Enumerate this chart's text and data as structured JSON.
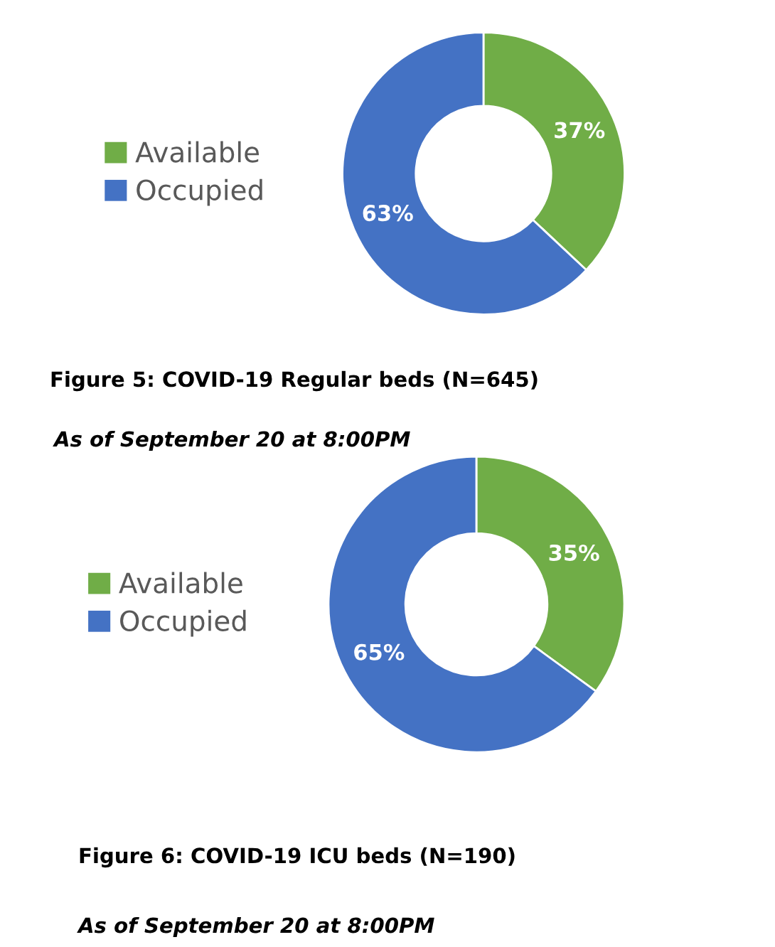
{
  "chart_data": [
    {
      "type": "donut",
      "title": "Figure 5: COVID-19 Regular beds (N=645)",
      "subtitle": "As of September 20 at 8:00PM",
      "categories": [
        "Available",
        "Occupied"
      ],
      "values": [
        37,
        63
      ],
      "value_labels": [
        "37%",
        "63%"
      ],
      "colors": [
        "#70ad47",
        "#4472c4"
      ],
      "legend": "left"
    },
    {
      "type": "donut",
      "title": "Figure 6: COVID-19 ICU beds (N=190)",
      "subtitle": "As of September 20 at 8:00PM",
      "categories": [
        "Available",
        "Occupied"
      ],
      "values": [
        35,
        65
      ],
      "value_labels": [
        "35%",
        "65%"
      ],
      "colors": [
        "#70ad47",
        "#4472c4"
      ],
      "legend": "left"
    }
  ]
}
